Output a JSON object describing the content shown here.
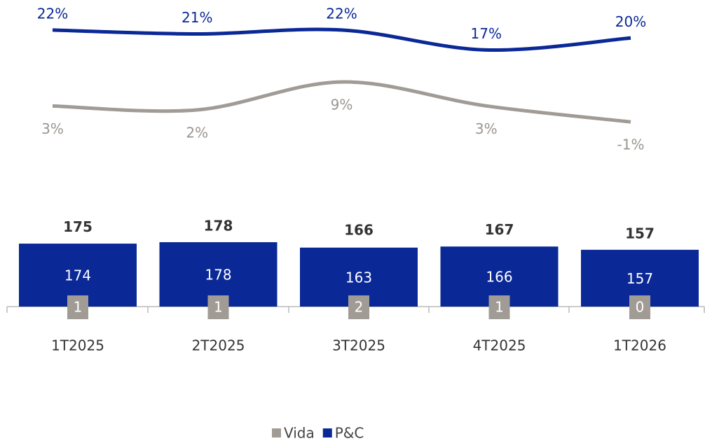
{
  "chart_data": {
    "type": "bar",
    "categories": [
      "1T2025",
      "2T2025",
      "3T2025",
      "4T2025",
      "1T2026"
    ],
    "series": [
      {
        "name": "Vida",
        "color": "#a19b95",
        "values": [
          1,
          1,
          2,
          1,
          0
        ],
        "line_values": [
          3,
          2,
          9,
          3,
          -1
        ],
        "line_value_labels": [
          "3%",
          "2%",
          "9%",
          "3%",
          "-1%"
        ]
      },
      {
        "name": "P&C",
        "color": "#0a2896",
        "values": [
          174,
          178,
          163,
          166,
          157
        ],
        "line_values": [
          22,
          21,
          22,
          17,
          20
        ],
        "line_value_labels": [
          "22%",
          "21%",
          "22%",
          "17%",
          "20%"
        ]
      }
    ],
    "totals": [
      175,
      178,
      166,
      167,
      157
    ],
    "ylim": [
      0,
      200
    ],
    "y2lim": [
      -5,
      26
    ],
    "legend": "bottom"
  }
}
